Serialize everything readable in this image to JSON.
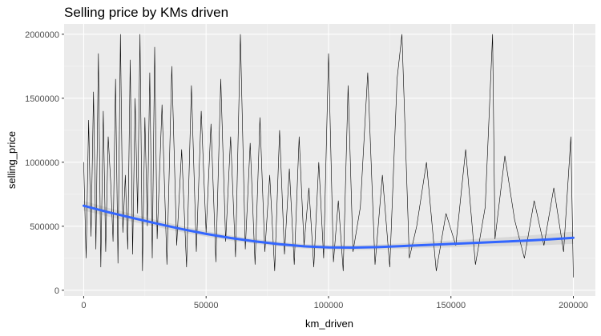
{
  "chart_data": {
    "type": "line",
    "title": "Selling price by KMs driven",
    "xlabel": "km_driven",
    "ylabel": "selling_price",
    "xlim": [
      -8000,
      209000
    ],
    "ylim": [
      -45000,
      2080000
    ],
    "x_ticks": [
      0,
      50000,
      100000,
      150000,
      200000
    ],
    "x_tick_labels": [
      "0",
      "50000",
      "100000",
      "150000",
      "200000"
    ],
    "y_ticks": [
      0,
      500000,
      1000000,
      1500000,
      2000000
    ],
    "y_tick_labels": [
      "0",
      "500000",
      "1000000",
      "1500000",
      "2000000"
    ],
    "grid": true,
    "legend": "none",
    "colors": {
      "panel_background": "#ebebeb",
      "grid_major": "#ffffff",
      "grid_minor": "#f5f5f5",
      "raw_line": "#000000",
      "smooth_line": "#3366ff",
      "confidence_band": "#d0d0d0"
    },
    "series": [
      {
        "kind": "raw",
        "x": [
          0,
          1000,
          2000,
          3000,
          4000,
          5000,
          6000,
          7000,
          8000,
          9000,
          10000,
          11000,
          12000,
          13000,
          14000,
          15000,
          16000,
          17000,
          18000,
          19000,
          20000,
          21000,
          22000,
          23000,
          24000,
          25000,
          26000,
          27000,
          28000,
          29000,
          30000,
          32000,
          34000,
          36000,
          38000,
          40000,
          42000,
          44000,
          46000,
          48000,
          50000,
          52000,
          54000,
          56000,
          58000,
          60000,
          62000,
          64000,
          66000,
          68000,
          70000,
          72000,
          74000,
          76000,
          78000,
          80000,
          82000,
          84000,
          86000,
          88000,
          90000,
          92000,
          94000,
          96000,
          98000,
          100000,
          102000,
          104000,
          106000,
          108000,
          110000,
          113000,
          116000,
          119000,
          122000,
          125000,
          128000,
          130000,
          133000,
          136000,
          140000,
          144000,
          148000,
          152000,
          156000,
          160000,
          164000,
          167000,
          168000,
          172000,
          176000,
          180000,
          184000,
          188000,
          192000,
          196000,
          199000,
          200000
        ],
        "y": [
          1000000,
          250000,
          1330000,
          420000,
          1550000,
          320000,
          1850000,
          180000,
          1400000,
          300000,
          1200000,
          850000,
          380000,
          1650000,
          210000,
          2000000,
          450000,
          900000,
          320000,
          1800000,
          280000,
          1500000,
          600000,
          2000000,
          150000,
          1350000,
          500000,
          1700000,
          250000,
          1900000,
          400000,
          1450000,
          200000,
          1750000,
          350000,
          1100000,
          180000,
          1600000,
          300000,
          1400000,
          450000,
          1300000,
          220000,
          1650000,
          380000,
          1200000,
          260000,
          2000000,
          320000,
          1150000,
          200000,
          1350000,
          300000,
          900000,
          150000,
          1250000,
          280000,
          950000,
          200000,
          1200000,
          350000,
          800000,
          180000,
          1000000,
          250000,
          1850000,
          220000,
          700000,
          150000,
          1600000,
          300000,
          650000,
          1700000,
          200000,
          900000,
          180000,
          1650000,
          2000000,
          250000,
          500000,
          1000000,
          150000,
          600000,
          350000,
          1100000,
          200000,
          650000,
          2000000,
          400000,
          1050000,
          550000,
          250000,
          700000,
          350000,
          800000,
          300000,
          1200000,
          100000
        ]
      },
      {
        "kind": "smooth",
        "x": [
          0,
          10000,
          20000,
          30000,
          40000,
          50000,
          60000,
          70000,
          80000,
          90000,
          100000,
          110000,
          120000,
          130000,
          140000,
          150000,
          160000,
          170000,
          180000,
          190000,
          200000
        ],
        "y": [
          660000,
          610000,
          565000,
          520000,
          478000,
          440000,
          408000,
          382000,
          360000,
          343000,
          335000,
          333000,
          337000,
          345000,
          354000,
          362000,
          370000,
          378000,
          387000,
          397000,
          410000
        ]
      }
    ]
  }
}
